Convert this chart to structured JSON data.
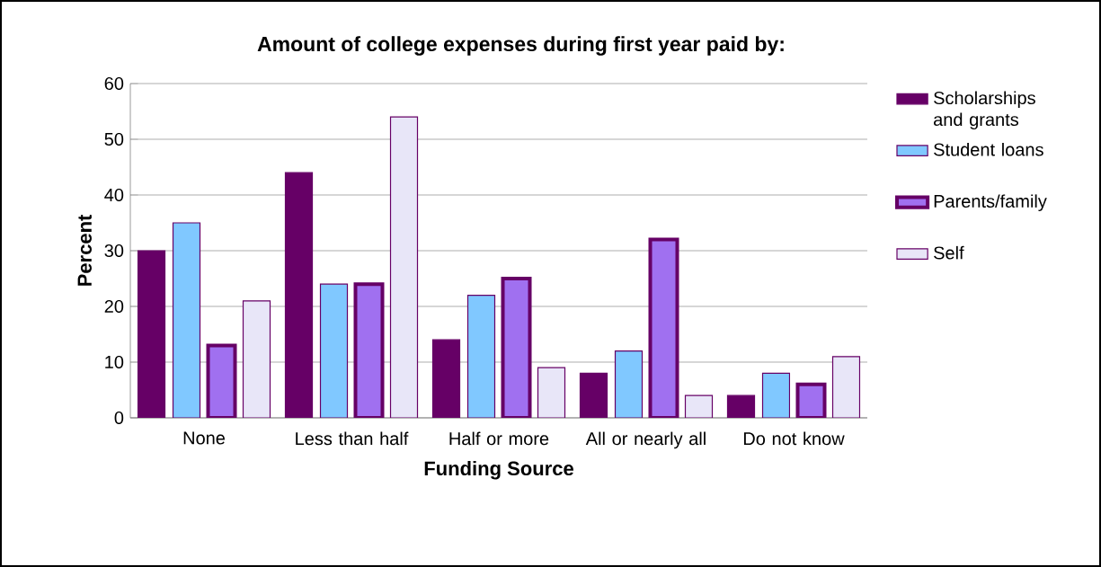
{
  "chart_data": {
    "type": "bar",
    "title": "Amount of college expenses during first year paid by:",
    "xlabel": "Funding Source",
    "ylabel": "Percent",
    "categories": [
      "None",
      "Less than half",
      "Half or more",
      "All or nearly all",
      "Do not know"
    ],
    "series": [
      {
        "name": "Scholarships and grants",
        "color": "#660066",
        "values": [
          30,
          44,
          14,
          8,
          4
        ]
      },
      {
        "name": "Student loans",
        "color": "#80c8ff",
        "values": [
          35,
          24,
          22,
          12,
          8
        ]
      },
      {
        "name": "Parents/family",
        "color": "#a070f0",
        "values": [
          13,
          24,
          25,
          32,
          6
        ]
      },
      {
        "name": "Self",
        "color": "#e8e6f8",
        "values": [
          21,
          54,
          9,
          4,
          11
        ]
      }
    ],
    "ylim": [
      0,
      60
    ],
    "yticks": [
      0,
      10,
      20,
      30,
      40,
      50,
      60
    ],
    "grid": "y",
    "legend": "right"
  }
}
